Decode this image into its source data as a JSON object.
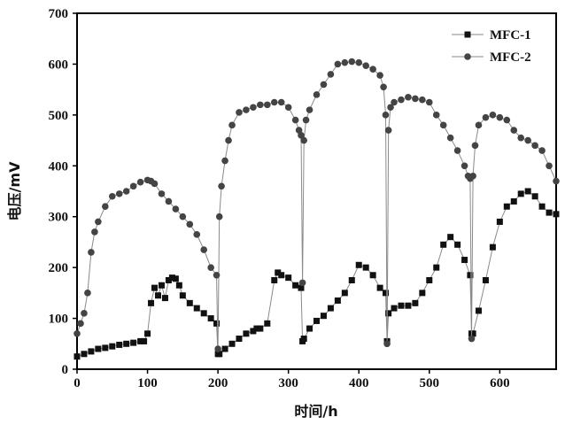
{
  "chart_data": {
    "type": "line",
    "title": "",
    "xlabel": "时间/h",
    "ylabel": "电压/mV",
    "xlim": [
      0,
      680
    ],
    "ylim": [
      0,
      700
    ],
    "xticks": [
      0,
      100,
      200,
      300,
      400,
      500,
      600
    ],
    "yticks": [
      0,
      100,
      200,
      300,
      400,
      500,
      600,
      700
    ],
    "grid": false,
    "legend_position": "top-right",
    "colors": {
      "series1": "#111111",
      "series2": "#444444",
      "line": "#8a8a8a",
      "axis": "#000000"
    },
    "series": [
      {
        "name": "MFC-1",
        "marker": "square",
        "x": [
          0,
          10,
          20,
          30,
          40,
          50,
          60,
          70,
          80,
          90,
          95,
          100,
          105,
          110,
          115,
          120,
          125,
          130,
          135,
          140,
          145,
          150,
          160,
          170,
          180,
          190,
          198,
          200,
          202,
          210,
          220,
          230,
          240,
          250,
          255,
          260,
          270,
          280,
          285,
          290,
          300,
          310,
          318,
          320,
          322,
          330,
          340,
          350,
          360,
          370,
          380,
          390,
          400,
          410,
          420,
          430,
          438,
          440,
          442,
          450,
          460,
          470,
          480,
          490,
          500,
          510,
          520,
          530,
          540,
          550,
          558,
          560,
          562,
          570,
          580,
          590,
          600,
          610,
          620,
          630,
          640,
          650,
          660,
          670,
          680
        ],
        "y": [
          25,
          30,
          35,
          40,
          42,
          45,
          48,
          50,
          52,
          55,
          55,
          70,
          130,
          160,
          145,
          165,
          140,
          175,
          180,
          178,
          165,
          145,
          130,
          120,
          110,
          100,
          90,
          30,
          30,
          40,
          50,
          60,
          70,
          75,
          80,
          80,
          90,
          175,
          190,
          185,
          180,
          165,
          160,
          55,
          60,
          80,
          95,
          105,
          120,
          135,
          150,
          175,
          205,
          200,
          185,
          160,
          150,
          55,
          110,
          120,
          125,
          125,
          130,
          150,
          175,
          200,
          245,
          260,
          245,
          215,
          185,
          70,
          70,
          115,
          175,
          240,
          290,
          320,
          330,
          345,
          350,
          340,
          320,
          308,
          305
        ]
      },
      {
        "name": "MFC-2",
        "marker": "circle",
        "x": [
          0,
          5,
          10,
          15,
          20,
          25,
          30,
          40,
          50,
          60,
          70,
          80,
          90,
          100,
          105,
          110,
          120,
          130,
          140,
          150,
          160,
          170,
          180,
          190,
          198,
          200,
          202,
          205,
          210,
          215,
          220,
          230,
          240,
          250,
          260,
          270,
          280,
          290,
          300,
          310,
          315,
          318,
          320,
          322,
          325,
          330,
          340,
          350,
          360,
          370,
          380,
          390,
          400,
          410,
          420,
          430,
          435,
          438,
          440,
          442,
          445,
          450,
          460,
          470,
          480,
          490,
          500,
          510,
          520,
          530,
          540,
          550,
          555,
          558,
          560,
          562,
          565,
          570,
          580,
          590,
          600,
          610,
          620,
          630,
          640,
          650,
          660,
          670,
          680
        ],
        "y": [
          70,
          90,
          110,
          150,
          230,
          270,
          290,
          320,
          340,
          345,
          350,
          360,
          368,
          372,
          370,
          365,
          345,
          330,
          315,
          300,
          285,
          265,
          235,
          200,
          185,
          40,
          300,
          360,
          410,
          450,
          480,
          505,
          510,
          515,
          520,
          520,
          525,
          525,
          515,
          490,
          470,
          460,
          170,
          450,
          490,
          510,
          540,
          560,
          580,
          600,
          603,
          605,
          603,
          597,
          590,
          578,
          555,
          500,
          50,
          470,
          515,
          525,
          530,
          535,
          532,
          530,
          525,
          500,
          480,
          455,
          430,
          400,
          380,
          375,
          60,
          380,
          440,
          480,
          495,
          500,
          495,
          490,
          470,
          455,
          450,
          440,
          430,
          400,
          370
        ]
      }
    ]
  }
}
